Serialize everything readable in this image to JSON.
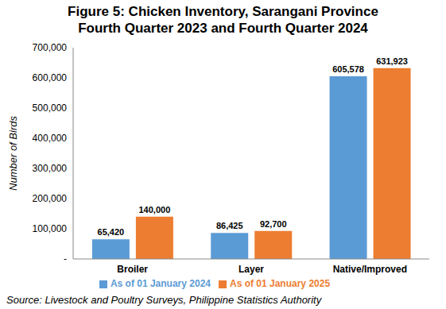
{
  "chart_data": {
    "type": "bar",
    "title": "Figure 5: Chicken Inventory, Sarangani Province",
    "subtitle": "Fourth Quarter 2023 and Fourth Quarter 2024",
    "y_label": "Number of Birds",
    "source": "Source: Livestock and Poultry Surveys, Philippine Statistics Authority",
    "categories": [
      "Broiler",
      "Layer",
      "Native/Improved"
    ],
    "series": [
      {
        "name": "As of 01 January 2024",
        "color": "#5b9bd5",
        "values": [
          65420,
          86425,
          605578
        ],
        "value_labels": [
          "65,420",
          "86,425",
          "605,578"
        ]
      },
      {
        "name": "As of 01 January 2025",
        "color": "#ed7d31",
        "values": [
          140000,
          92700,
          631923
        ],
        "value_labels": [
          "140,000",
          "92,700",
          "631,923"
        ]
      }
    ],
    "ylim": [
      0,
      700000
    ],
    "yticks": [
      {
        "value": 0,
        "label": "-"
      },
      {
        "value": 100000,
        "label": "100,000"
      },
      {
        "value": 200000,
        "label": "200,000"
      },
      {
        "value": 300000,
        "label": "300,000"
      },
      {
        "value": 400000,
        "label": "400,000"
      },
      {
        "value": 500000,
        "label": "500,000"
      },
      {
        "value": 600000,
        "label": "600,000"
      },
      {
        "value": 700000,
        "label": "700,000"
      }
    ],
    "grid": false,
    "legend": "bottom",
    "data_labels": true
  }
}
